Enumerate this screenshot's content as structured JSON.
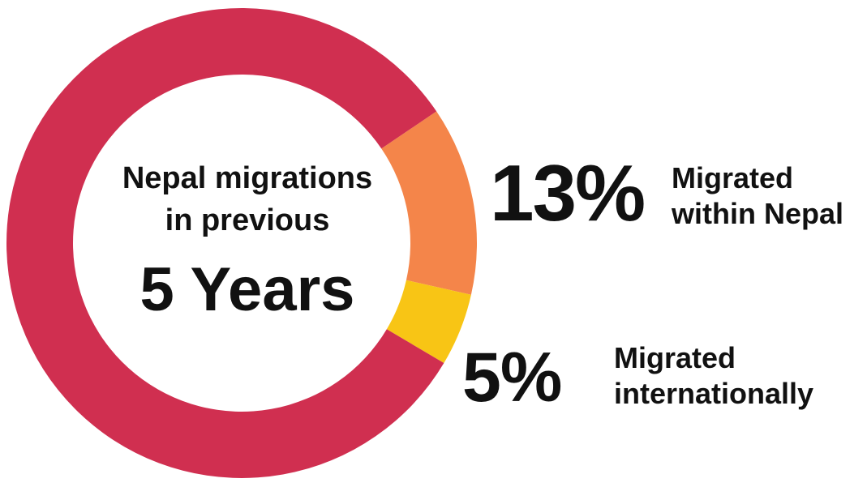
{
  "chart_data": {
    "type": "pie",
    "style": "donut",
    "title_lines": [
      "Nepal migrations",
      "in previous"
    ],
    "title_emphasis": "5 Years",
    "slices": [
      {
        "label_lines": [
          "Migrated",
          "within Nepal"
        ],
        "value": 13,
        "display": "13%",
        "color": "#F4854A"
      },
      {
        "label_lines": [
          "Migrated",
          "internationally"
        ],
        "value": 5,
        "display": "5%",
        "color": "#F8C515"
      },
      {
        "label_lines": [],
        "value": 82,
        "display": "",
        "color": "#D02F50"
      }
    ]
  }
}
